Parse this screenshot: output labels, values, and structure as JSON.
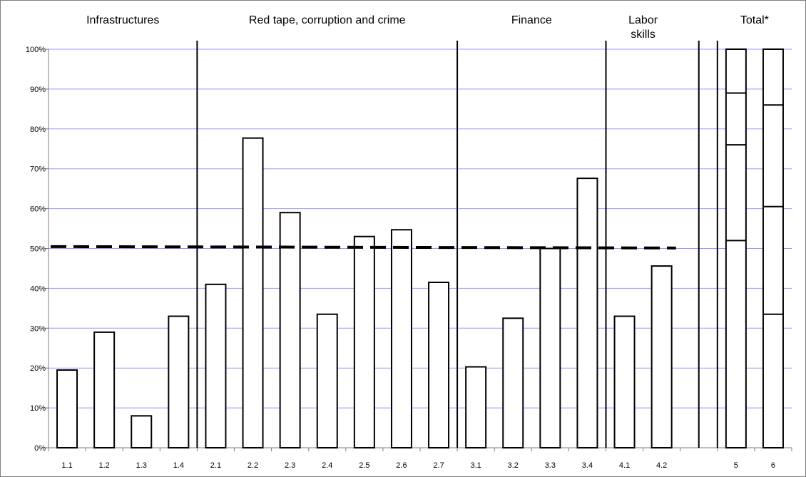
{
  "chart_data": {
    "type": "bar",
    "categories": [
      "1.1",
      "1.2",
      "1.3",
      "1.4",
      "2.1",
      "2.2",
      "2.3",
      "2.4",
      "2.5",
      "2.6",
      "2.7",
      "3.1",
      "3.2",
      "3.3",
      "3.4",
      "4.1",
      "4.2",
      "",
      "5",
      "6"
    ],
    "values": [
      19.5,
      29,
      8,
      33,
      41,
      77.7,
      59,
      33.5,
      53,
      54.7,
      41.5,
      20.3,
      32.5,
      50,
      67.6,
      33,
      45.6,
      null,
      100,
      100
    ],
    "stacked_segments": {
      "5": [
        52,
        76,
        89,
        100
      ],
      "6": [
        33.5,
        60.5,
        86,
        100
      ]
    },
    "reference_line": {
      "value": 50.3,
      "style": "dashed",
      "from_category": "1.1",
      "to_category": "4.2"
    },
    "groups": [
      {
        "label": "Infrastructures",
        "categories": [
          "1.1",
          "1.2",
          "1.3",
          "1.4"
        ]
      },
      {
        "label": "Red tape, corruption and crime",
        "categories": [
          "2.1",
          "2.2",
          "2.3",
          "2.4",
          "2.5",
          "2.6",
          "2.7"
        ]
      },
      {
        "label": "Finance",
        "categories": [
          "3.1",
          "3.2",
          "3.3",
          "3.4"
        ]
      },
      {
        "label": "Labor skills",
        "categories": [
          "4.1",
          "4.2"
        ]
      },
      {
        "label": "Total*",
        "categories": [
          "5",
          "6"
        ]
      }
    ],
    "y_ticks": [
      "0%",
      "10%",
      "20%",
      "30%",
      "40%",
      "50%",
      "60%",
      "70%",
      "80%",
      "90%",
      "100%"
    ],
    "ylim": [
      0,
      100
    ],
    "grid": true,
    "colors": {
      "bar_fill": "#ffffff",
      "bar_stroke": "#000000",
      "grid": "#9999ff",
      "axis": "#7f7f7f"
    }
  }
}
